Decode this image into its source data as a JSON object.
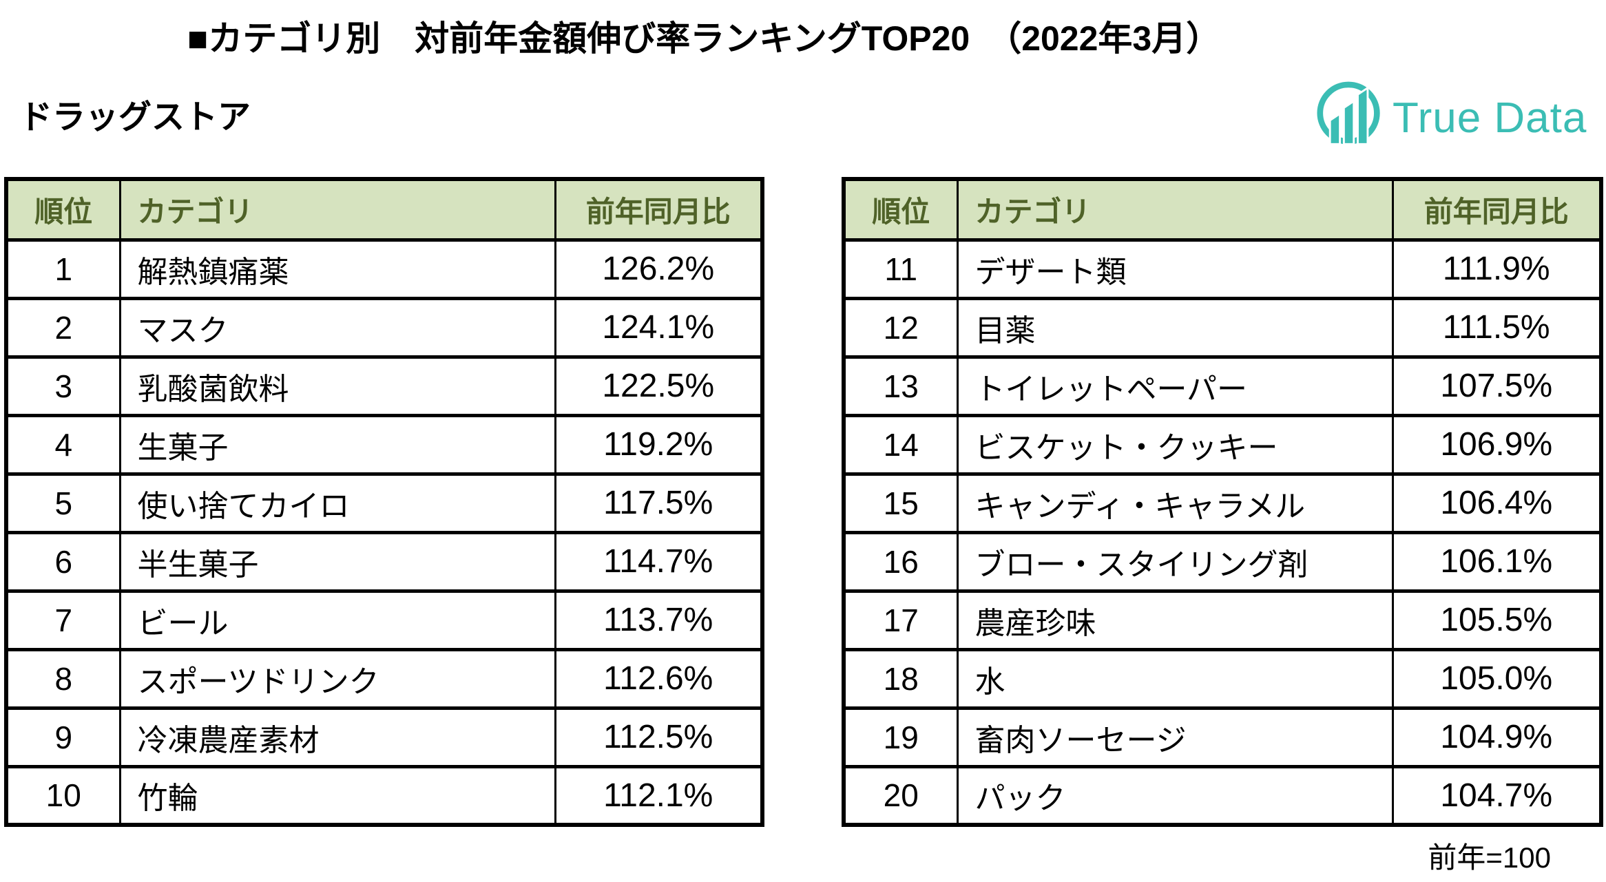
{
  "title": "■カテゴリ別　対前年金額伸び率ランキングTOP20　（2022年3月）",
  "subtitle": "ドラッグストア",
  "logo": {
    "text": "True Data"
  },
  "note": "前年=100",
  "colors": {
    "accent_teal": "#3BBDB4",
    "header_bg": "#D6E3BF",
    "header_text": "#4F6228",
    "border": "#000000"
  },
  "chart_data": {
    "type": "table",
    "title": "■カテゴリ別　対前年金額伸び率ランキングTOP20　（2022年3月）",
    "subtitle": "ドラッグストア",
    "note": "前年=100",
    "columns": {
      "rank": "順位",
      "category": "カテゴリ",
      "value": "前年同月比"
    },
    "tables": {
      "left": {
        "rows": [
          {
            "rank": "1",
            "category": "解熱鎮痛薬",
            "value": "126.2%"
          },
          {
            "rank": "2",
            "category": "マスク",
            "value": "124.1%"
          },
          {
            "rank": "3",
            "category": "乳酸菌飲料",
            "value": "122.5%"
          },
          {
            "rank": "4",
            "category": "生菓子",
            "value": "119.2%"
          },
          {
            "rank": "5",
            "category": "使い捨てカイロ",
            "value": "117.5%"
          },
          {
            "rank": "6",
            "category": "半生菓子",
            "value": "114.7%"
          },
          {
            "rank": "7",
            "category": "ビール",
            "value": "113.7%"
          },
          {
            "rank": "8",
            "category": "スポーツドリンク",
            "value": "112.6%"
          },
          {
            "rank": "9",
            "category": "冷凍農産素材",
            "value": "112.5%"
          },
          {
            "rank": "10",
            "category": "竹輪",
            "value": "112.1%"
          }
        ]
      },
      "right": {
        "rows": [
          {
            "rank": "11",
            "category": "デザート類",
            "value": "111.9%"
          },
          {
            "rank": "12",
            "category": "目薬",
            "value": "111.5%"
          },
          {
            "rank": "13",
            "category": "トイレットペーパー",
            "value": "107.5%"
          },
          {
            "rank": "14",
            "category": "ビスケット・クッキー",
            "value": "106.9%"
          },
          {
            "rank": "15",
            "category": "キャンディ・キャラメル",
            "value": "106.4%"
          },
          {
            "rank": "16",
            "category": "ブロー・スタイリング剤",
            "value": "106.1%"
          },
          {
            "rank": "17",
            "category": "農産珍味",
            "value": "105.5%"
          },
          {
            "rank": "18",
            "category": "水",
            "value": "105.0%"
          },
          {
            "rank": "19",
            "category": "畜肉ソーセージ",
            "value": "104.9%"
          },
          {
            "rank": "20",
            "category": "パック",
            "value": "104.7%"
          }
        ]
      }
    }
  }
}
